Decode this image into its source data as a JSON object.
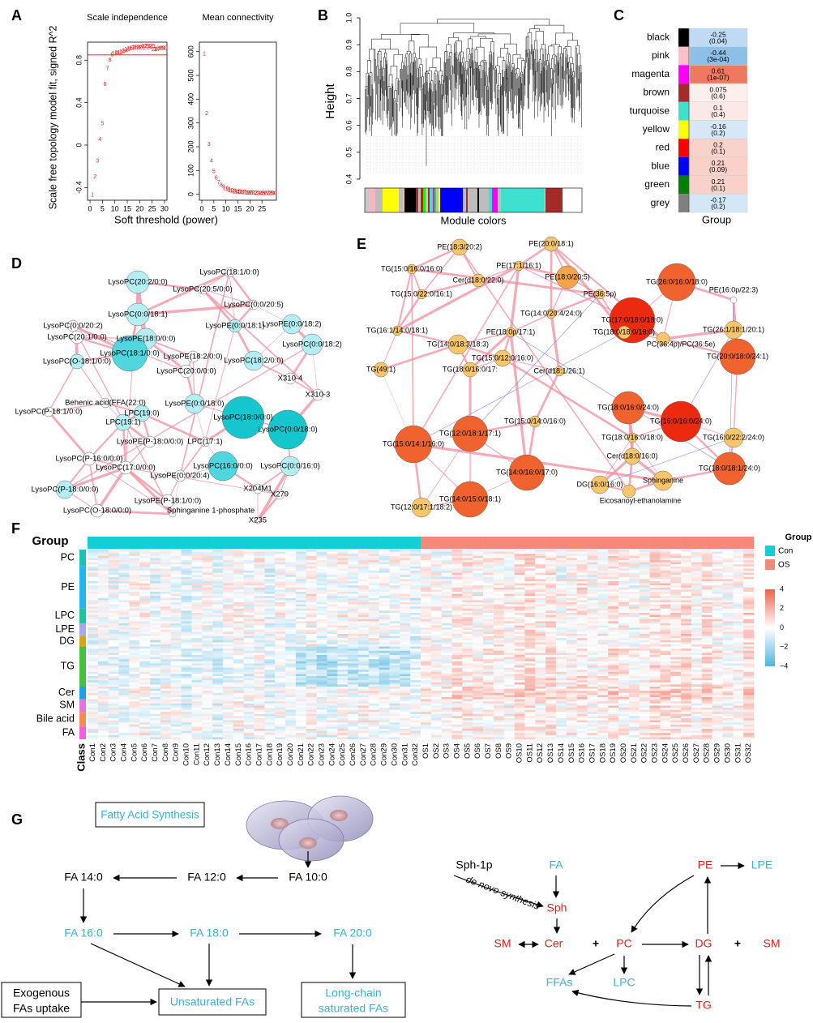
{
  "panel_letters": [
    "A",
    "B",
    "C",
    "D",
    "E",
    "F",
    "G"
  ],
  "A": {
    "ylabel": "Scale free topology model fit, signed R^2",
    "xlabel": "Soft threshold (power)",
    "scale_independence": {
      "type": "scatter",
      "title": "Scale independence",
      "x": [
        1,
        2,
        3,
        4,
        5,
        6,
        7,
        8,
        9,
        10,
        11,
        12,
        13,
        14,
        15,
        16,
        17,
        18,
        19,
        20,
        21,
        22,
        23,
        24,
        25,
        26,
        27,
        28,
        29,
        30
      ],
      "y": [
        -0.47,
        -0.3,
        -0.15,
        0.05,
        0.2,
        0.57,
        0.72,
        0.8,
        0.85,
        0.86,
        0.87,
        0.87,
        0.88,
        0.89,
        0.9,
        0.91,
        0.91,
        0.92,
        0.92,
        0.92,
        0.92,
        0.93,
        0.93,
        0.92,
        0.93,
        0.9,
        0.9,
        0.91,
        0.91,
        0.91
      ],
      "xlim": [
        -1,
        31
      ],
      "ylim": [
        -0.52,
        0.97
      ],
      "xticks": [
        0,
        5,
        10,
        15,
        20,
        25,
        30
      ],
      "yticks": [
        -0.4,
        0,
        0.4,
        0.8
      ],
      "cutoff": 0.85,
      "color": "#e8231f"
    },
    "mean_connectivity": {
      "type": "scatter",
      "title": "Mean connectivity",
      "x": [
        1,
        2,
        3,
        4,
        5,
        6,
        7,
        8,
        9,
        10,
        11,
        12,
        13,
        14,
        15,
        16,
        17,
        18,
        19,
        20,
        21,
        22,
        23,
        24,
        25,
        26,
        27,
        28,
        29,
        30
      ],
      "y": [
        590,
        340,
        210,
        140,
        95,
        68,
        50,
        38,
        30,
        24,
        20,
        16,
        13,
        11,
        10,
        9,
        8,
        7,
        6,
        6,
        5,
        5,
        4,
        4,
        4,
        3,
        3,
        3,
        3,
        3
      ],
      "xlim": [
        -1,
        31
      ],
      "ylim": [
        -25,
        640
      ],
      "xticks": [
        0,
        5,
        10,
        15,
        20,
        25
      ],
      "yticks": [
        0,
        100,
        200,
        300,
        400,
        500,
        600
      ],
      "color": "#e8231f"
    }
  },
  "B": {
    "ylabel": "Height",
    "xlabel": "Module colors",
    "ylim": [
      0.4,
      1
    ],
    "yticks": [
      0.4,
      0.5,
      0.6,
      0.7,
      0.8,
      0.9,
      {
        "value": 1,
        "label": "1.0"
      }
    ]
  },
  "C": {
    "type": "heatmap",
    "column": "Group",
    "modules": [
      "black",
      "pink",
      "magenta",
      "brown",
      "turquoise",
      "yellow",
      "red",
      "blue",
      "green",
      "grey"
    ],
    "values": [
      -0.25,
      -0.44,
      0.61,
      0.075,
      0.1,
      -0.16,
      0.2,
      0.21,
      0.21,
      -0.17
    ],
    "p_values": [
      "(0.04)",
      "(3e-04)",
      "(1e-07)",
      "(0.6)",
      "(0.4)",
      "(0.2)",
      "(0.1)",
      "(0.09)",
      "(0.1)",
      "(0.2)"
    ]
  },
  "D": {
    "nodes": [
      "LysoPC(20:2/0:0)",
      "LysoPC(18:1/0:0)",
      "LysoPC(20:5/0:0)",
      "LysoPC(0:0/20:5)",
      "LysoPC(0:0/18:1)",
      "LysoPC(0:0/20:2)",
      "LysoPE(0:0/18:1)",
      "LysoPE(0:0/18:2)",
      "LysoPC(20:1/0:0)",
      "LysoPE(18:0/0:0)",
      "LysoPC(0:0/18:2)",
      "LysoPE(18:2/0:0)",
      "LysoPC(18:2/0:0)",
      "LysoPC(18:1/0:0)",
      "LysoPC(O-18:1/0:0)",
      "LysoPC(20:0/0:0)",
      "X310-4",
      "X310-3",
      "Behenic acid(FFA(22:0)",
      "LysoPC(P-18:1/0:0)",
      "LysoPE(0:0/18:0)",
      "LPC(19:0)",
      "LysoPC(18:0/0:0)",
      "LysoPC(0:0/18:0)",
      "LPC(19:1)",
      "LysoPE(P-18:0/0:0)",
      "LPC(17:1)",
      "LysoPC(P-16:0/0:0)",
      "LysoPC(16:0/0:0)",
      "LysoPC(0:0/16:0)",
      "LysoPC(17:0/0:0)",
      "LysoPE(0:0/20:4)",
      "X204M1",
      "X279",
      "LysoPC(P-18:0/0:0)",
      "LysoPE(P-18:1/0:0)",
      "LysoPC(O-18:0/0:0)",
      "Sphinganine 1-phosphate",
      "X235"
    ]
  },
  "E": {
    "nodes": [
      "PE(18:3/20:2)",
      "PE(20:0/18:1)",
      "TG(15:0/16:0/16:0)",
      "PE(17:1/16:1)",
      "PE(18:0/20:5)",
      "Cer(d18:0/22:0)",
      "TG(26:0/16:0/18:0)",
      "PE(16:0p/22:3)",
      "TG(15:0/22:0/16:1)",
      "PE(36:5p)",
      "TG(14:0/20:4/24:0)",
      "TG(17:0/18:0/18:0)",
      "TG(16:1/14:0/18:1)",
      "PE(18:0p/17:1)",
      "TG(18:0/18:0/18:0)",
      "TG(26:1/18:1/20:1)",
      "TG(14:0/18:3/18:3)",
      "PC(36:4p)/PC(36:5e)",
      "TG(15:0/12:0/16:0)",
      "TG(18:0/16:0/17:",
      "Cer(d18:1/26:1)",
      "TG(20:0/18:0/24:1)",
      "TG(49:1)",
      "TG(18:0/16:0/24:0)",
      "TG(16:0/16:0/24:0)",
      "TG(15:0/14:0/16:0)",
      "TG(12:0/18:1/17:1)",
      "TG(15:0/14:1/16:0)",
      "TG(18:0/16:0/18:0)",
      "TG(16:0/22:2/24:0)",
      "Cer(d18:0/16:0)",
      "TG(14:0/16:0/17:0)",
      "TG(18:0/18:1/24:0)",
      "DG(16:0/16:0)",
      "Sphinganine",
      "TG(14:0/15:0/18:1)",
      "Eicosanoyl-ethanolamine",
      "TG(12:0/17:1/18:2)"
    ]
  },
  "F": {
    "group_title": "Group",
    "class_title": "Class",
    "legend_title": "Group",
    "groups": [
      {
        "name": "Con",
        "color": "#14ced6"
      },
      {
        "name": "OS",
        "color": "#f4897b"
      }
    ],
    "classes": [
      {
        "name": "PC",
        "color": "#18c4b8"
      },
      {
        "name": "PE",
        "color": "#22b8ec"
      },
      {
        "name": "LPC",
        "color": "#20c39c"
      },
      {
        "name": "LPE",
        "color": "#a9a6ee"
      },
      {
        "name": "DG",
        "color": "#d6a414"
      },
      {
        "name": "TG",
        "color": "#46c03e"
      },
      {
        "name": "Cer",
        "color": "#1ca2e2"
      },
      {
        "name": "SM",
        "color": "#e274e2"
      },
      {
        "name": "Bile acid",
        "color": "#f28a5a"
      },
      {
        "name": "FA",
        "color": "#f25ee2"
      }
    ],
    "columns": [
      "Con1",
      "Con2",
      "Con3",
      "Con4",
      "Con5",
      "Con6",
      "Con7",
      "Con8",
      "Con9",
      "Con10",
      "Con11",
      "Con12",
      "Con13",
      "Con14",
      "Con15",
      "Con16",
      "Con17",
      "Con18",
      "Con19",
      "Con20",
      "Con21",
      "Con22",
      "Con23",
      "Con24",
      "Con25",
      "Con26",
      "Con27",
      "Con28",
      "Con29",
      "Con30",
      "Con31",
      "Con32",
      "OS1",
      "OS2",
      "OS3",
      "OS4",
      "OS5",
      "OS6",
      "OS7",
      "OS8",
      "OS9",
      "OS10",
      "OS11",
      "OS12",
      "OS13",
      "OS14",
      "OS15",
      "OS16",
      "OS17",
      "OS18",
      "OS19",
      "OS20",
      "OS21",
      "OS22",
      "OS23",
      "OS24",
      "OS25",
      "OS26",
      "OS27",
      "OS28",
      "OS29",
      "OS30",
      "OS31",
      "OS32"
    ],
    "scale": {
      "lim": [
        -4,
        4
      ],
      "ticks": [
        4,
        2,
        0,
        {
          "value": -2,
          "label": "−2"
        },
        {
          "value": -4,
          "label": "−4"
        }
      ],
      "colors": [
        "#4eb3e0",
        "#ffffff",
        "#f0604a"
      ]
    }
  },
  "G": {
    "fas": "Fatty Acid Synthesis",
    "fa10": "FA 10:0",
    "fa12": "FA 12:0",
    "fa14": "FA 14:0",
    "fa16": "FA 16:0",
    "fa18": "FA 18:0",
    "fa20": "FA 20:0",
    "unsat": "Unsaturated FAs",
    "longchain": [
      "Long-chain",
      "saturated FAs"
    ],
    "exo": [
      "Exogenous",
      "FAs uptake"
    ],
    "sph1p": "Sph-1p",
    "fa": "FA",
    "denovo": "de novo synthesis",
    "sph": "Sph",
    "pe": "PE",
    "lpe": "LPE",
    "sm1": "SM",
    "cer": "Cer",
    "plus1": "+",
    "pc": "PC",
    "dg": "DG",
    "plus2": "+",
    "sm2": "SM",
    "ffas": "FFAs",
    "lpc": "LPC",
    "tg": "TG"
  }
}
